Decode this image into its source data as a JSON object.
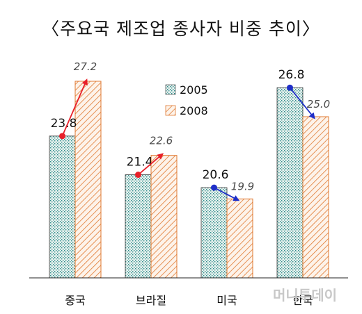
{
  "chart_data": {
    "type": "bar",
    "title": "〈주요국 제조업 종사자 비중 추이〉",
    "categories": [
      "중국",
      "브라질",
      "미국",
      "한국"
    ],
    "series": [
      {
        "name": "2005",
        "values": [
          23.8,
          21.4,
          20.6,
          26.8
        ],
        "labels": [
          "23.8",
          "21.4",
          "20.6",
          "26.8"
        ]
      },
      {
        "name": "2008",
        "values": [
          27.2,
          22.6,
          19.9,
          25.0
        ],
        "labels": [
          "27.2",
          "22.6",
          "19.9",
          "25.0"
        ]
      }
    ],
    "ylim": [
      15,
      29
    ],
    "grid": false,
    "legend": "top-center",
    "arrow_colors": {
      "up": "#e8202a",
      "down": "#1f2fc8"
    },
    "bar_colors": {
      "2005_dot": "#2a8a8a",
      "2008_hatch": "#e07830"
    }
  },
  "watermark": "머니투데이"
}
